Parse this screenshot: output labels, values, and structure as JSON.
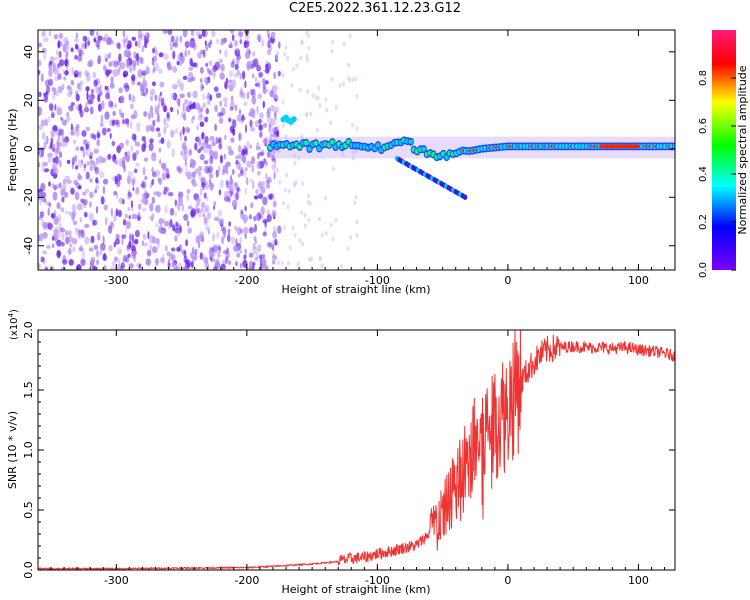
{
  "title": "C2E5.2022.361.12.23.G12",
  "colors": {
    "snr_line": "#ee3333",
    "spectrogram_scatter": "#7a2cf0",
    "colorbar_stops": [
      "#7a00ff",
      "#0000ff",
      "#00ffff",
      "#00ff00",
      "#ffff00",
      "#ff0000",
      "#ff1a7a"
    ]
  },
  "chart_data": [
    {
      "type": "heatmap",
      "title": "C2E5.2022.361.12.23.G12",
      "xlabel": "Height of straight line (km)",
      "ylabel": "Frequency (Hz)",
      "xlim": [
        -360,
        128
      ],
      "ylim": [
        -50,
        49
      ],
      "x_ticks": [
        -300,
        -200,
        -100,
        0,
        100
      ],
      "y_ticks": [
        -40,
        -20,
        0,
        20,
        40
      ],
      "colorbar": {
        "label": "Normalized spectral amplitude",
        "range": [
          0.0,
          1.0
        ],
        "ticks": [
          "0.0",
          "0.2",
          "0.4",
          "0.6",
          "0.8"
        ]
      },
      "ridge": {
        "description_points": [
          {
            "x": -180,
            "y": 2
          },
          {
            "x": -150,
            "y": 1
          },
          {
            "x": -120,
            "y": 2
          },
          {
            "x": -100,
            "y": 0
          },
          {
            "x": -80,
            "y": 3
          },
          {
            "x": -60,
            "y": -2
          },
          {
            "x": -40,
            "y": -2
          },
          {
            "x": -20,
            "y": 0
          },
          {
            "x": 0,
            "y": 1
          },
          {
            "x": 50,
            "y": 1
          },
          {
            "x": 90,
            "y": 1
          },
          {
            "x": 128,
            "y": 1
          }
        ]
      }
    },
    {
      "type": "line",
      "xlabel": "Height of straight line (km)",
      "ylabel": "SNR (10 * v/v)",
      "y_multiplier": "(x10^4)",
      "xlim": [
        -360,
        128
      ],
      "ylim": [
        0,
        2.0
      ],
      "x_ticks": [
        -300,
        -200,
        -100,
        0,
        100
      ],
      "y_ticks": [
        "0.0",
        "0.5",
        "1.0",
        "1.5",
        "2.0"
      ],
      "series": [
        {
          "x": [
            -360,
            -300,
            -250,
            -200,
            -180,
            -150,
            -130,
            -120,
            -110,
            -100,
            -90,
            -80,
            -70,
            -60,
            -55,
            -50,
            -45,
            -40,
            -35,
            -30,
            -25,
            -20,
            -15,
            -10,
            -5,
            0,
            5,
            10,
            15,
            20,
            25,
            30,
            40,
            50,
            60,
            70,
            80,
            90,
            100,
            110,
            120,
            128
          ],
          "y": [
            0.01,
            0.01,
            0.015,
            0.02,
            0.03,
            0.05,
            0.07,
            0.09,
            0.1,
            0.13,
            0.15,
            0.18,
            0.2,
            0.3,
            0.38,
            0.45,
            0.55,
            0.7,
            0.8,
            0.9,
            1.0,
            1.05,
            1.15,
            1.2,
            1.25,
            1.3,
            1.45,
            1.55,
            1.65,
            1.72,
            1.78,
            1.82,
            1.85,
            1.86,
            1.85,
            1.85,
            1.84,
            1.85,
            1.83,
            1.82,
            1.8,
            1.78
          ]
        }
      ]
    }
  ]
}
